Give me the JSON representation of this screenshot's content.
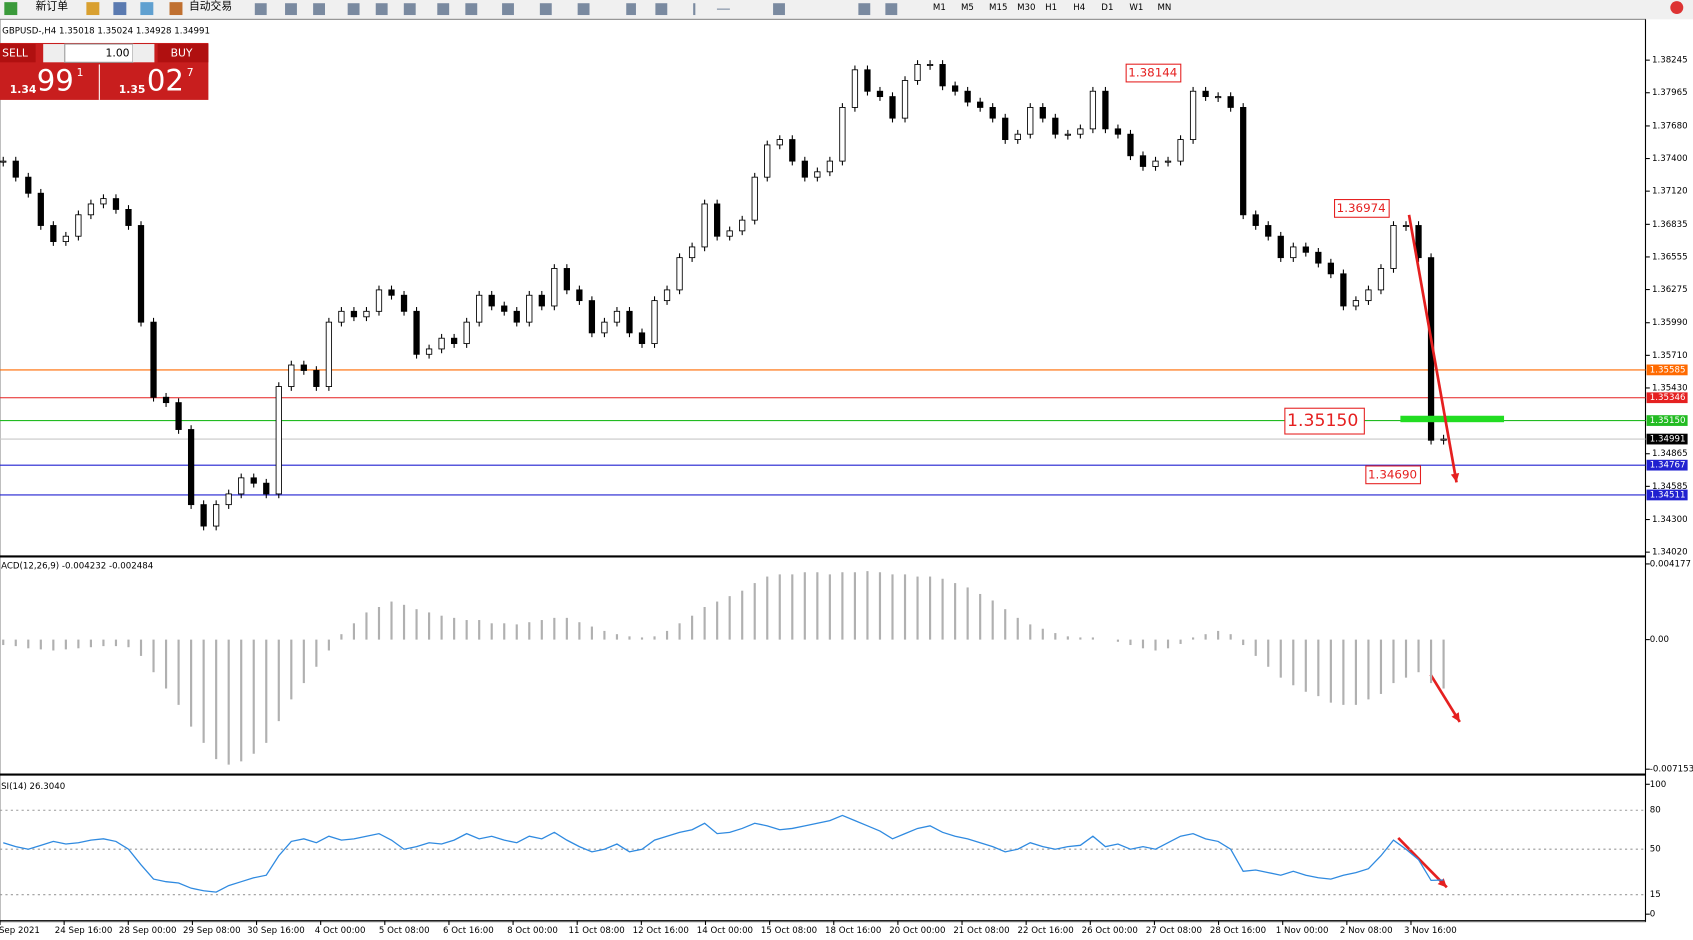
{
  "toolbar": {
    "new_order": "新订单",
    "auto_trading": "自动交易",
    "timeframes": [
      "M1",
      "M5",
      "M15",
      "M30",
      "H1",
      "H4",
      "D1",
      "W1",
      "MN"
    ]
  },
  "header": "GBPUSD-,H4 1.35018 1.35024 1.34928 1.34991",
  "trade_panel": {
    "sell": "SELL",
    "buy": "BUY",
    "lot": "1.00",
    "bid_big": "1.34",
    "bid_main": "99",
    "bid_frac": "1",
    "ask_big": "1.35",
    "ask_main": "02",
    "ask_frac": "7"
  },
  "main_chart": {
    "ylim": [
      1.33992,
      1.38577
    ],
    "yticks": [
      1.38245,
      1.37965,
      {
        "value": 1.3768,
        "label": "1.37680"
      },
      {
        "value": 1.374,
        "label": "1.37400"
      },
      {
        "value": 1.3712,
        "label": "1.37120"
      },
      1.36835,
      1.36555,
      1.36275,
      {
        "value": 1.3599,
        "label": "1.35990"
      },
      {
        "value": 1.3571,
        "label": "1.35710"
      },
      {
        "value": 1.3543,
        "label": "1.35430"
      },
      1.34865,
      1.34585,
      {
        "value": 1.343,
        "label": "1.34300"
      },
      {
        "value": 1.3402,
        "label": "1.34020"
      }
    ],
    "price_levels": [
      {
        "value": 1.35585,
        "color": "#ff6a00"
      },
      {
        "value": 1.35346,
        "color": "#e52020"
      },
      {
        "value": {
          "value": 1.3515,
          "label": "1.35150"
        },
        "color": "#22bb22"
      },
      {
        "value": 1.34991,
        "color": "#000000"
      },
      {
        "value": 1.34767,
        "color": "#2020d0"
      },
      {
        "value": 1.34511,
        "color": "#2020d0"
      }
    ],
    "closes": [
      1.37378,
      1.3724,
      1.37102,
      1.36825,
      1.36687,
      1.36733,
      1.36917,
      1.3701,
      1.37056,
      1.36963,
      1.36825,
      1.35995,
      1.3535,
      1.35304,
      1.35073,
      1.34428,
      1.34244,
      1.34428,
      1.3452,
      1.34658,
      1.34612,
      1.3452,
      1.35442,
      1.35627,
      1.3558,
      1.35442,
      1.35995,
      1.36088,
      1.36041,
      1.36088,
      1.36272,
      1.36226,
      1.36088,
      1.35719,
      1.35765,
      1.35857,
      1.35811,
      1.35995,
      1.36226,
      1.36134,
      1.36088,
      1.35995,
      1.36226,
      1.36134,
      1.36456,
      1.36272,
      1.3618,
      1.35903,
      1.35995,
      1.36088,
      1.35903,
      1.35811,
      1.3618,
      1.36272,
      1.36549,
      1.36641,
      1.3701,
      1.36733,
      1.36779,
      1.36871,
      1.3724,
      1.37517,
      1.37563,
      1.37378,
      1.3724,
      1.37286,
      1.37378,
      1.37839,
      1.38162,
      1.37978,
      1.37932,
      1.37747,
      1.3807,
      1.38208,
      1.38208,
      1.38024,
      1.37978,
      1.37885,
      1.37839,
      1.37747,
      1.37563,
      1.37609,
      1.37839,
      1.37747,
      1.37609,
      1.37609,
      1.37655,
      1.37978,
      1.37655,
      1.37609,
      1.37424,
      1.37332,
      1.37378,
      1.37378,
      1.37563,
      1.37978,
      1.37932,
      1.37932,
      1.37839,
      1.36917,
      1.36825,
      1.36733,
      1.36549,
      1.36641,
      1.36595,
      1.36502,
      1.3641,
      1.36134,
      1.3618,
      1.36272,
      1.36456,
      1.36825,
      1.36825,
      1.36549,
      1.34981,
      1.34991
    ],
    "annotations": [
      "1.38144",
      "1.36974",
      "1.35150",
      "1.34690"
    ]
  },
  "macd": {
    "label": "ACD(12,26,9) -0.004232 -0.002484",
    "ylim": [
      -0.00739,
      0.00447
    ],
    "yticks": [
      0.004177,
      {
        "value": 0,
        "label": "0.00"
      },
      -0.007153
    ],
    "histogram": [
      -0.0003,
      -0.00036,
      -0.00048,
      -0.00054,
      -0.0006,
      -0.00054,
      -0.00048,
      -0.00042,
      -0.00036,
      -0.00036,
      -0.00042,
      -0.0009,
      -0.0018,
      -0.0027,
      -0.0036,
      -0.0048,
      -0.0057,
      -0.0066,
      -0.0069,
      -0.00672,
      -0.0063,
      -0.0057,
      -0.0045,
      -0.0033,
      -0.0024,
      -0.0015,
      -0.0006,
      0.0003,
      0.0009,
      0.0015,
      0.0018,
      0.0021,
      0.00192,
      0.00168,
      0.0015,
      0.00132,
      0.0012,
      0.00108,
      0.00108,
      0.0009,
      0.0009,
      0.00084,
      0.00096,
      0.00108,
      0.0012,
      0.0012,
      0.00096,
      0.00072,
      0.00048,
      0.0003,
      0.00018,
      0.00012,
      0.00018,
      0.00048,
      0.0009,
      0.00132,
      0.0018,
      0.0021,
      0.0024,
      0.0027,
      0.00312,
      0.00348,
      0.0036,
      0.0036,
      0.00372,
      0.00372,
      0.0036,
      0.00372,
      0.00372,
      0.00378,
      0.00372,
      0.0036,
      0.0036,
      0.00348,
      0.00348,
      0.00336,
      0.00312,
      0.00288,
      0.00252,
      0.00216,
      0.00168,
      0.0012,
      0.00084,
      0.0006,
      0.00036,
      0.00018,
      0.00012,
      0.00012,
      0,
      -0.00012,
      -0.0003,
      -0.00048,
      -0.0006,
      -0.00048,
      -0.00024,
      0.00012,
      0.0003,
      0.00048,
      0.0003,
      -0.0003,
      -0.0009,
      -0.0015,
      -0.0021,
      -0.00252,
      -0.00288,
      -0.00312,
      -0.00348,
      -0.0036,
      -0.0036,
      -0.0033,
      -0.003,
      -0.0024,
      -0.0021,
      -0.0018,
      -0.0024,
      -0.0027
    ]
  },
  "rsi": {
    "label": "SI(14) 26.3040",
    "ylim": [
      -5,
      105
    ],
    "yticks": [
      100,
      80,
      50,
      15,
      0
    ],
    "values": [
      55,
      52,
      50,
      53,
      56,
      54,
      55,
      57,
      58,
      56,
      50,
      38,
      27,
      25,
      24,
      20,
      18,
      17,
      22,
      25,
      28,
      30,
      45,
      56,
      58,
      55,
      60,
      57,
      58,
      60,
      62,
      57,
      50,
      52,
      55,
      54,
      57,
      62,
      58,
      60,
      57,
      55,
      60,
      58,
      63,
      57,
      52,
      48,
      50,
      54,
      48,
      50,
      57,
      60,
      63,
      65,
      70,
      62,
      63,
      66,
      70,
      68,
      65,
      66,
      68,
      70,
      72,
      76,
      72,
      68,
      64,
      58,
      62,
      66,
      68,
      63,
      60,
      58,
      55,
      52,
      48,
      50,
      55,
      52,
      50,
      52,
      53,
      60,
      52,
      54,
      50,
      52,
      50,
      55,
      60,
      62,
      58,
      56,
      50,
      33,
      34,
      32,
      30,
      33,
      30,
      28,
      27,
      30,
      32,
      35,
      45,
      57,
      50,
      42,
      26,
      26.304
    ]
  },
  "time_axis": [
    "Sep 2021",
    "24 Sep 16:00",
    "28 Sep 00:00",
    "29 Sep 08:00",
    "30 Sep 16:00",
    "4 Oct 00:00",
    "5 Oct 08:00",
    "6 Oct 16:00",
    "8 Oct 00:00",
    "11 Oct 08:00",
    "12 Oct 16:00",
    "14 Oct 00:00",
    "15 Oct 08:00",
    "18 Oct 16:00",
    "20 Oct 00:00",
    "21 Oct 08:00",
    "22 Oct 16:00",
    "26 Oct 00:00",
    "27 Oct 08:00",
    "28 Oct 16:00",
    "1 Nov 00:00",
    "2 Nov 08:00",
    "3 Nov 16:00"
  ]
}
